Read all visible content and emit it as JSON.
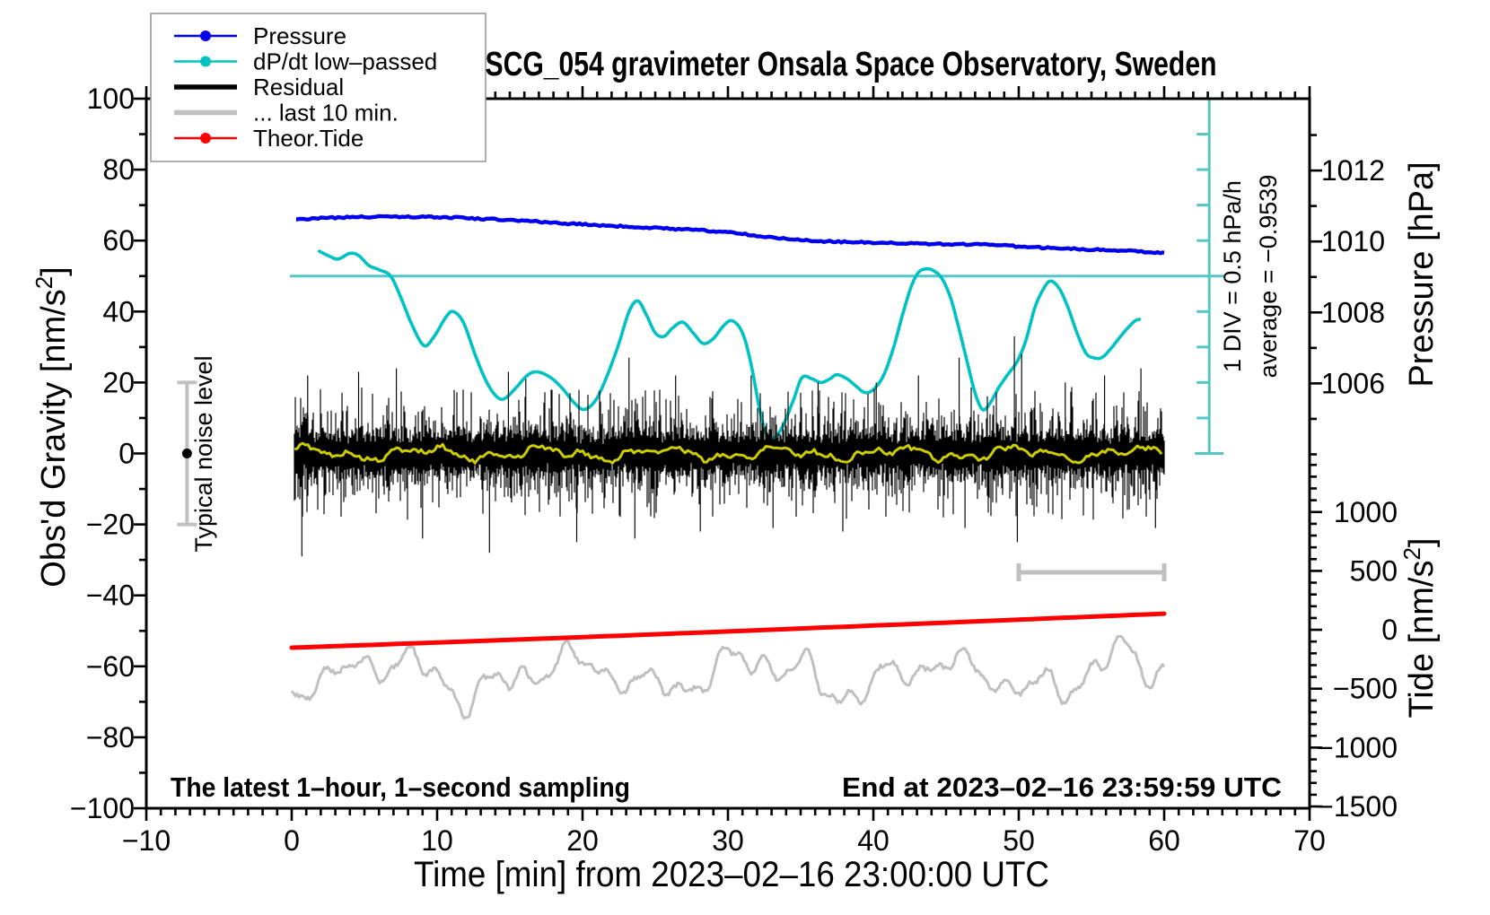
{
  "title": "SCG_054 gravimeter Onsala Space Observatory, Sweden",
  "colors": {
    "pressure": "#0000EE",
    "dpdt": "#00C2C2",
    "dpdt_guides": "#55C6C6",
    "residual": "#000000",
    "residual_smoothed": "#CCCC00",
    "last10": "#C0C0C0",
    "tide": "#FF0000",
    "frame": "#000000",
    "legend_border": "#999999"
  },
  "chart_data": {
    "type": "line",
    "title": "SCG_054 gravimeter Onsala Space Observatory, Sweden",
    "x_axis": {
      "label": "Time [min] from 2023–02–16 23:00:00 UTC",
      "range": [
        -10,
        70
      ],
      "major_tick": 10,
      "minor_tick": 1,
      "tick_labels": [
        "−10",
        "0",
        "10",
        "20",
        "30",
        "40",
        "50",
        "60",
        "70"
      ]
    },
    "y_axis_left": {
      "label": "Obs'd Gravity [nm/s2]",
      "label_parts": [
        "Obs'd Gravity [nm/s",
        "2",
        "]"
      ],
      "range": [
        -100,
        100
      ],
      "major_tick": 20,
      "minor_tick": 10,
      "tick_labels": [
        "−100",
        "−80",
        "−60",
        "−40",
        "−20",
        "0",
        "20",
        "40",
        "60",
        "80",
        "100"
      ]
    },
    "y_axis_right_pressure": {
      "label": "Pressure [hPa]",
      "tick_values": [
        1012,
        1010,
        1008,
        1006
      ],
      "tick_labels": [
        "1012",
        "1010",
        "1008",
        "1006"
      ],
      "all_tick_values": [
        1013,
        1012,
        1011,
        1010,
        1009,
        1008,
        1007,
        1006,
        1005,
        1004
      ],
      "gravity_at_1012": 79.75,
      "gravity_per_hPa": 10
    },
    "y_axis_right_tide": {
      "label": "Tide [nm/s2]",
      "label_parts": [
        "Tide [nm/s",
        "2",
        "]"
      ],
      "tick_values": [
        1000,
        500,
        0,
        -500,
        -1000,
        -1500
      ],
      "tick_labels": [
        "1000",
        "500",
        "0",
        "−500",
        "−1000",
        "−1500"
      ],
      "minor_step": 100,
      "minor_range": [
        1400,
        -1500
      ],
      "gravity_at_zero": -49.7,
      "gravity_per_unit": 0.0332
    },
    "series": [
      {
        "name": "Pressure",
        "color": "#0000EE",
        "axis": "pressure_hPa",
        "points": [
          [
            0.3,
            1010.62
          ],
          [
            2,
            1010.66
          ],
          [
            4,
            1010.68
          ],
          [
            6,
            1010.7
          ],
          [
            8,
            1010.7
          ],
          [
            10,
            1010.68
          ],
          [
            12,
            1010.66
          ],
          [
            14,
            1010.62
          ],
          [
            16,
            1010.58
          ],
          [
            18,
            1010.53
          ],
          [
            20,
            1010.48
          ],
          [
            22,
            1010.44
          ],
          [
            24,
            1010.4
          ],
          [
            26,
            1010.36
          ],
          [
            28,
            1010.32
          ],
          [
            30,
            1010.26
          ],
          [
            32,
            1010.16
          ],
          [
            34,
            1010.08
          ],
          [
            36,
            1010.02
          ],
          [
            38,
            1009.99
          ],
          [
            40,
            1009.97
          ],
          [
            42,
            1009.95
          ],
          [
            44,
            1009.93
          ],
          [
            46,
            1009.92
          ],
          [
            48,
            1009.9
          ],
          [
            50,
            1009.86
          ],
          [
            52,
            1009.82
          ],
          [
            54,
            1009.79
          ],
          [
            56,
            1009.76
          ],
          [
            58,
            1009.72
          ],
          [
            60,
            1009.67
          ]
        ]
      },
      {
        "name": "dP/dt low–passed",
        "color": "#00C2C2",
        "axis": "dpdt_hPa_per_h",
        "baseline_gravity": 50,
        "hPa_per_h_per_div": 0.5,
        "gravity_units_per_div": 10,
        "points": [
          [
            1.9,
            0.35
          ],
          [
            2.6,
            0.28
          ],
          [
            3.2,
            0.24
          ],
          [
            4.0,
            0.32
          ],
          [
            4.6,
            0.29
          ],
          [
            5.3,
            0.15
          ],
          [
            6.0,
            0.09
          ],
          [
            6.8,
            0.0
          ],
          [
            7.5,
            -0.3
          ],
          [
            8.3,
            -0.7
          ],
          [
            9.1,
            -0.98
          ],
          [
            9.8,
            -0.85
          ],
          [
            10.6,
            -0.58
          ],
          [
            11.1,
            -0.5
          ],
          [
            11.8,
            -0.65
          ],
          [
            12.6,
            -1.1
          ],
          [
            13.3,
            -1.45
          ],
          [
            14.0,
            -1.68
          ],
          [
            14.6,
            -1.73
          ],
          [
            15.4,
            -1.58
          ],
          [
            16.2,
            -1.4
          ],
          [
            16.9,
            -1.35
          ],
          [
            17.8,
            -1.43
          ],
          [
            18.6,
            -1.58
          ],
          [
            19.4,
            -1.78
          ],
          [
            20.1,
            -1.88
          ],
          [
            20.9,
            -1.75
          ],
          [
            21.7,
            -1.4
          ],
          [
            22.5,
            -0.95
          ],
          [
            23.2,
            -0.5
          ],
          [
            23.8,
            -0.35
          ],
          [
            24.4,
            -0.55
          ],
          [
            25.0,
            -0.8
          ],
          [
            25.6,
            -0.85
          ],
          [
            26.2,
            -0.73
          ],
          [
            26.9,
            -0.65
          ],
          [
            27.6,
            -0.8
          ],
          [
            28.3,
            -0.95
          ],
          [
            29.0,
            -0.88
          ],
          [
            29.7,
            -0.7
          ],
          [
            30.3,
            -0.63
          ],
          [
            31.0,
            -0.8
          ],
          [
            31.6,
            -1.25
          ],
          [
            32.2,
            -1.9
          ],
          [
            32.7,
            -2.25
          ],
          [
            33.2,
            -2.28
          ],
          [
            33.8,
            -2.1
          ],
          [
            34.5,
            -1.75
          ],
          [
            35.1,
            -1.43
          ],
          [
            35.8,
            -1.45
          ],
          [
            36.4,
            -1.5
          ],
          [
            37.0,
            -1.45
          ],
          [
            37.5,
            -1.39
          ],
          [
            38.2,
            -1.45
          ],
          [
            38.8,
            -1.55
          ],
          [
            39.4,
            -1.64
          ],
          [
            40.0,
            -1.6
          ],
          [
            40.7,
            -1.4
          ],
          [
            41.4,
            -1.0
          ],
          [
            42.0,
            -0.55
          ],
          [
            42.6,
            -0.15
          ],
          [
            43.1,
            0.05
          ],
          [
            43.6,
            0.1
          ],
          [
            44.1,
            0.08
          ],
          [
            44.7,
            -0.03
          ],
          [
            45.3,
            -0.3
          ],
          [
            45.9,
            -0.75
          ],
          [
            46.5,
            -1.25
          ],
          [
            47.0,
            -1.65
          ],
          [
            47.5,
            -1.88
          ],
          [
            48.0,
            -1.8
          ],
          [
            48.6,
            -1.58
          ],
          [
            49.2,
            -1.4
          ],
          [
            49.9,
            -1.2
          ],
          [
            50.5,
            -0.9
          ],
          [
            51.1,
            -0.45
          ],
          [
            51.7,
            -0.18
          ],
          [
            52.2,
            -0.07
          ],
          [
            52.8,
            -0.18
          ],
          [
            53.4,
            -0.45
          ],
          [
            54.0,
            -0.8
          ],
          [
            54.6,
            -1.08
          ],
          [
            55.1,
            -1.15
          ],
          [
            55.7,
            -1.15
          ],
          [
            56.3,
            -1.03
          ],
          [
            57.0,
            -0.85
          ],
          [
            57.5,
            -0.73
          ],
          [
            58.0,
            -0.63
          ],
          [
            58.3,
            -0.61
          ]
        ]
      },
      {
        "name": "Residual",
        "color": "#000000",
        "axis": "gravity_nm_s2",
        "style": "noise_band",
        "band_center": 0,
        "typical_band": [
          -15,
          15
        ],
        "time_range_min": [
          0.2,
          60
        ],
        "seed": 13,
        "spikes": [
          [
            0.7,
            -29
          ],
          [
            1.1,
            22
          ],
          [
            4.6,
            23
          ],
          [
            7.2,
            24
          ],
          [
            9.0,
            -24
          ],
          [
            13.6,
            -28
          ],
          [
            14.9,
            23
          ],
          [
            16.1,
            21
          ],
          [
            19.6,
            -25
          ],
          [
            23.2,
            27
          ],
          [
            23.6,
            -24
          ],
          [
            26.4,
            22
          ],
          [
            28.1,
            -22
          ],
          [
            31.6,
            22
          ],
          [
            33.1,
            -21
          ],
          [
            36.2,
            20
          ],
          [
            37.9,
            -22
          ],
          [
            40.2,
            20
          ],
          [
            43.1,
            22
          ],
          [
            45.9,
            27
          ],
          [
            46.3,
            -21
          ],
          [
            49.7,
            33
          ],
          [
            49.9,
            -25
          ],
          [
            50.2,
            28
          ],
          [
            53.2,
            20
          ],
          [
            55.9,
            22
          ],
          [
            58.4,
            24
          ],
          [
            59.4,
            -21
          ]
        ]
      },
      {
        "name": "Residual smoothed",
        "color": "#CCCC00",
        "axis": "gravity_nm_s2",
        "style": "smooth_noise",
        "center": 0,
        "amplitude": 2.7,
        "time_range_min": [
          0.2,
          60
        ],
        "seed": 5
      },
      {
        "name": "... last 10 min.",
        "color": "#C0C0C0",
        "axis": "gravity_nm_s2",
        "style": "oscillation",
        "center": -62.5,
        "peak_range": [
          -78,
          -48
        ],
        "source_window_min": [
          50,
          60
        ],
        "time_range_min": [
          0,
          60
        ],
        "seed": 9
      },
      {
        "name": "Theor.Tide",
        "color": "#FF0000",
        "axis": "tide_nm_s2",
        "points": [
          [
            0,
            -152
          ],
          [
            10,
            -108
          ],
          [
            20,
            -62
          ],
          [
            30,
            -14
          ],
          [
            40,
            36
          ],
          [
            50,
            86
          ],
          [
            60,
            137
          ]
        ]
      }
    ],
    "markers": {
      "noise_level": {
        "label": "Typical noise level",
        "x_min": -7.2,
        "center_gravity": 0,
        "bar_gravity": [
          -20,
          20
        ]
      },
      "last10_bar": {
        "x_min": [
          50,
          60
        ],
        "gravity": -33.5
      },
      "dpdt_zero_line": {
        "gravity": 50,
        "x_min": [
          0,
          64.2
        ]
      },
      "dpdt_ruler": {
        "x_min": 63.1,
        "gravity_range": [
          0,
          100
        ],
        "div_gravity": 10,
        "div_label": "1 DIV = 0.5 hPa/h",
        "average_label": "average = −0.9539"
      }
    },
    "legend": {
      "items": [
        {
          "label": "Pressure",
          "color": "#0000EE",
          "dot": true,
          "thick": false
        },
        {
          "label": "dP/dt low–passed",
          "color": "#00C2C2",
          "dot": true,
          "thick": false
        },
        {
          "label": "Residual",
          "color": "#000000",
          "dot": false,
          "thick": true
        },
        {
          "label": "... last 10 min.",
          "color": "#C0C0C0",
          "dot": false,
          "thick": true
        },
        {
          "label": "Theor.Tide",
          "color": "#FF0000",
          "dot": true,
          "thick": false
        }
      ]
    },
    "notes": {
      "sampling": "The latest 1–hour, 1–second sampling",
      "end": "End at 2023–02–16 23:59:59 UTC"
    }
  }
}
